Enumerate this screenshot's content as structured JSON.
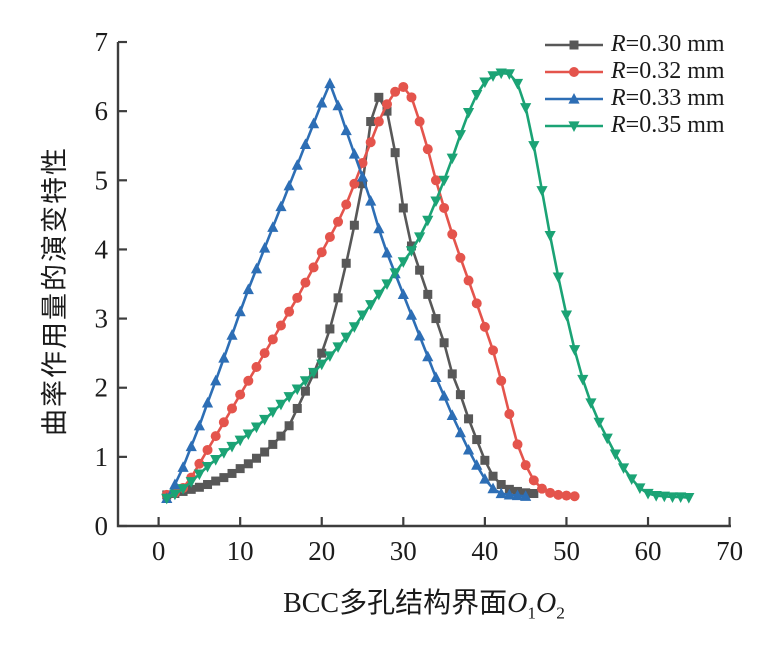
{
  "figure_title": "",
  "chart_data": {
    "type": "line",
    "title": "",
    "xlabel": "BCC多孔结构界面O₁O₂",
    "xlabel_parts": {
      "prefix": "BCC多孔结构界面",
      "var1": "O",
      "sub1": "1",
      "var2": "O",
      "sub2": "2"
    },
    "ylabel": "曲率作用量的演变特性",
    "xlim": [
      -5,
      70
    ],
    "ylim": [
      0,
      7
    ],
    "x_ticks": [
      0,
      10,
      20,
      30,
      40,
      50,
      60,
      70
    ],
    "y_ticks": [
      0,
      1,
      2,
      3,
      4,
      5,
      6,
      7
    ],
    "grid": false,
    "legend_position": "top-right-inside",
    "axis_color": "#3d3d3d",
    "tick_label_color": "#1c1c1c",
    "series": [
      {
        "name": "R=0.30 mm",
        "label_var": "R",
        "label_rest": "=0.30 mm",
        "color": "#585858",
        "marker": "square",
        "x_start": 1,
        "x_step": 1,
        "peak": {
          "x": 27,
          "y": 6.2
        },
        "y": [
          0.45,
          0.47,
          0.5,
          0.53,
          0.56,
          0.6,
          0.65,
          0.7,
          0.76,
          0.83,
          0.9,
          0.98,
          1.07,
          1.18,
          1.3,
          1.45,
          1.7,
          1.95,
          2.2,
          2.5,
          2.85,
          3.3,
          3.8,
          4.35,
          4.95,
          5.85,
          6.2,
          6.0,
          5.4,
          4.6,
          4.05,
          3.7,
          3.35,
          3.0,
          2.65,
          2.2,
          1.9,
          1.55,
          1.25,
          0.95,
          0.72,
          0.6,
          0.53,
          0.5,
          0.48,
          0.47
        ]
      },
      {
        "name": "R=0.32 mm",
        "label_var": "R",
        "label_rest": "=0.32 mm",
        "color": "#e4544c",
        "marker": "circle",
        "x_start": 1,
        "x_step": 1,
        "peak": {
          "x": 30,
          "y": 6.35
        },
        "y": [
          0.45,
          0.48,
          0.55,
          0.7,
          0.9,
          1.1,
          1.3,
          1.5,
          1.7,
          1.9,
          2.1,
          2.3,
          2.5,
          2.7,
          2.9,
          3.1,
          3.3,
          3.52,
          3.74,
          3.96,
          4.18,
          4.4,
          4.65,
          4.95,
          5.25,
          5.55,
          5.85,
          6.1,
          6.28,
          6.35,
          6.2,
          5.85,
          5.45,
          5.0,
          4.6,
          4.22,
          3.88,
          3.55,
          3.22,
          2.88,
          2.54,
          2.1,
          1.62,
          1.18,
          0.88,
          0.66,
          0.54,
          0.48,
          0.45,
          0.44,
          0.43
        ]
      },
      {
        "name": "R=0.33 mm",
        "label_var": "R",
        "label_rest": "=0.33 mm",
        "color": "#2d6eb5",
        "marker": "triangle-up",
        "x_start": 1,
        "x_step": 1,
        "peak": {
          "x": 21,
          "y": 6.4
        },
        "y": [
          0.4,
          0.6,
          0.85,
          1.15,
          1.45,
          1.78,
          2.1,
          2.43,
          2.76,
          3.1,
          3.42,
          3.72,
          4.02,
          4.32,
          4.62,
          4.92,
          5.22,
          5.52,
          5.82,
          6.12,
          6.4,
          6.08,
          5.72,
          5.38,
          5.05,
          4.7,
          4.3,
          3.95,
          3.65,
          3.35,
          3.05,
          2.75,
          2.45,
          2.15,
          1.88,
          1.6,
          1.35,
          1.1,
          0.88,
          0.68,
          0.54,
          0.47,
          0.45,
          0.44,
          0.43
        ]
      },
      {
        "name": "R=0.35 mm",
        "label_var": "R",
        "label_rest": "=0.35 mm",
        "color": "#1ba375",
        "marker": "triangle-down",
        "x_start": 1,
        "x_step": 1,
        "peak": {
          "x": 42,
          "y": 6.55
        },
        "y": [
          0.4,
          0.46,
          0.54,
          0.64,
          0.75,
          0.86,
          0.96,
          1.06,
          1.15,
          1.24,
          1.33,
          1.43,
          1.54,
          1.65,
          1.76,
          1.87,
          1.98,
          2.1,
          2.22,
          2.34,
          2.46,
          2.59,
          2.73,
          2.88,
          3.05,
          3.2,
          3.35,
          3.5,
          3.66,
          3.82,
          3.98,
          4.18,
          4.42,
          4.7,
          5.0,
          5.32,
          5.66,
          5.98,
          6.24,
          6.42,
          6.51,
          6.55,
          6.54,
          6.4,
          6.05,
          5.5,
          4.85,
          4.2,
          3.6,
          3.05,
          2.55,
          2.12,
          1.78,
          1.5,
          1.27,
          1.04,
          0.84,
          0.68,
          0.55,
          0.47,
          0.44,
          0.43,
          0.42,
          0.42,
          0.41
        ]
      }
    ]
  }
}
